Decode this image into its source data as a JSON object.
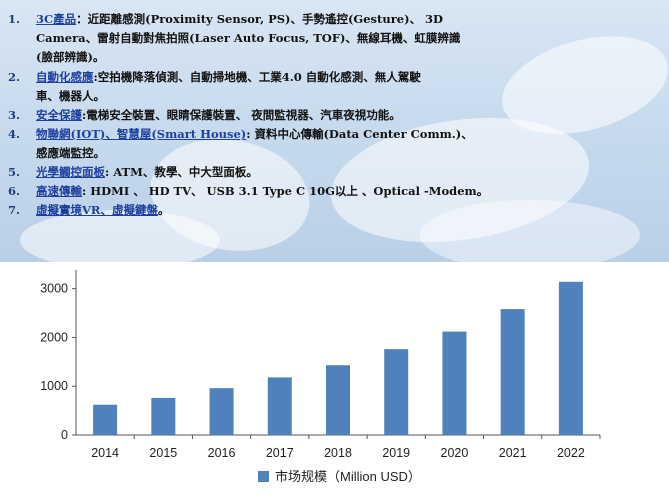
{
  "applications": [
    {
      "number": "1.",
      "category": "3C產品",
      "separator": "：",
      "description": "近距離感測(Proximity Sensor, PS)、手勢遙控(Gesture)、 3D"
    },
    {
      "number": "",
      "category": "",
      "separator": "",
      "description": "Camera、雷射自動對焦拍照(Laser Auto Focus, TOF)、無線耳機、虹膜辨識"
    },
    {
      "number": "",
      "category": "",
      "separator": "",
      "description": "(臉部辨識)。"
    },
    {
      "number": "2.",
      "category": "自動化感應",
      "separator": ":",
      "description": "空拍機降落偵測、自動掃地機、工業4.0 自動化感測、無人駕駛"
    },
    {
      "number": "",
      "category": "",
      "separator": "",
      "description": "車、機器人。"
    },
    {
      "number": "3.",
      "category": "安全保護",
      "separator": ":",
      "description": "電梯安全裝置、眼睛保護裝置、 夜間監視器、汽車夜視功能。"
    },
    {
      "number": "4.",
      "category": "物聯網(IOT)、智慧屋(Smart House)",
      "separator": ":",
      "description": " 資料中心傳輸(Data Center Comm.)、"
    },
    {
      "number": "",
      "category": "",
      "separator": "",
      "description": "感應端監控。"
    },
    {
      "number": "5.",
      "category": "光學觸控面板",
      "separator": ":",
      "description": " ATM、教學、中大型面板。"
    },
    {
      "number": "6.",
      "category": "高速傳輸",
      "separator": ":",
      "description": " HDMI 、 HD TV、 USB 3.1 Type C 10G以上 、Optical -Modem。"
    },
    {
      "number": "7.",
      "category": "虛擬實境VR、虛擬鍵盤",
      "separator": "",
      "description": "。"
    }
  ],
  "chart_data": {
    "type": "bar",
    "categories": [
      "2014",
      "2015",
      "2016",
      "2017",
      "2018",
      "2019",
      "2020",
      "2021",
      "2022"
    ],
    "series": [
      {
        "name": "市场规模（Million USD）",
        "values": [
          620,
          760,
          960,
          1180,
          1430,
          1760,
          2120,
          2580,
          3140
        ]
      }
    ],
    "ylim": [
      0,
      3300
    ],
    "yticks": [
      0,
      1000,
      2000,
      3000
    ],
    "legend_position": "bottom-center",
    "bar_color": "#4f81bd",
    "grid": false
  }
}
